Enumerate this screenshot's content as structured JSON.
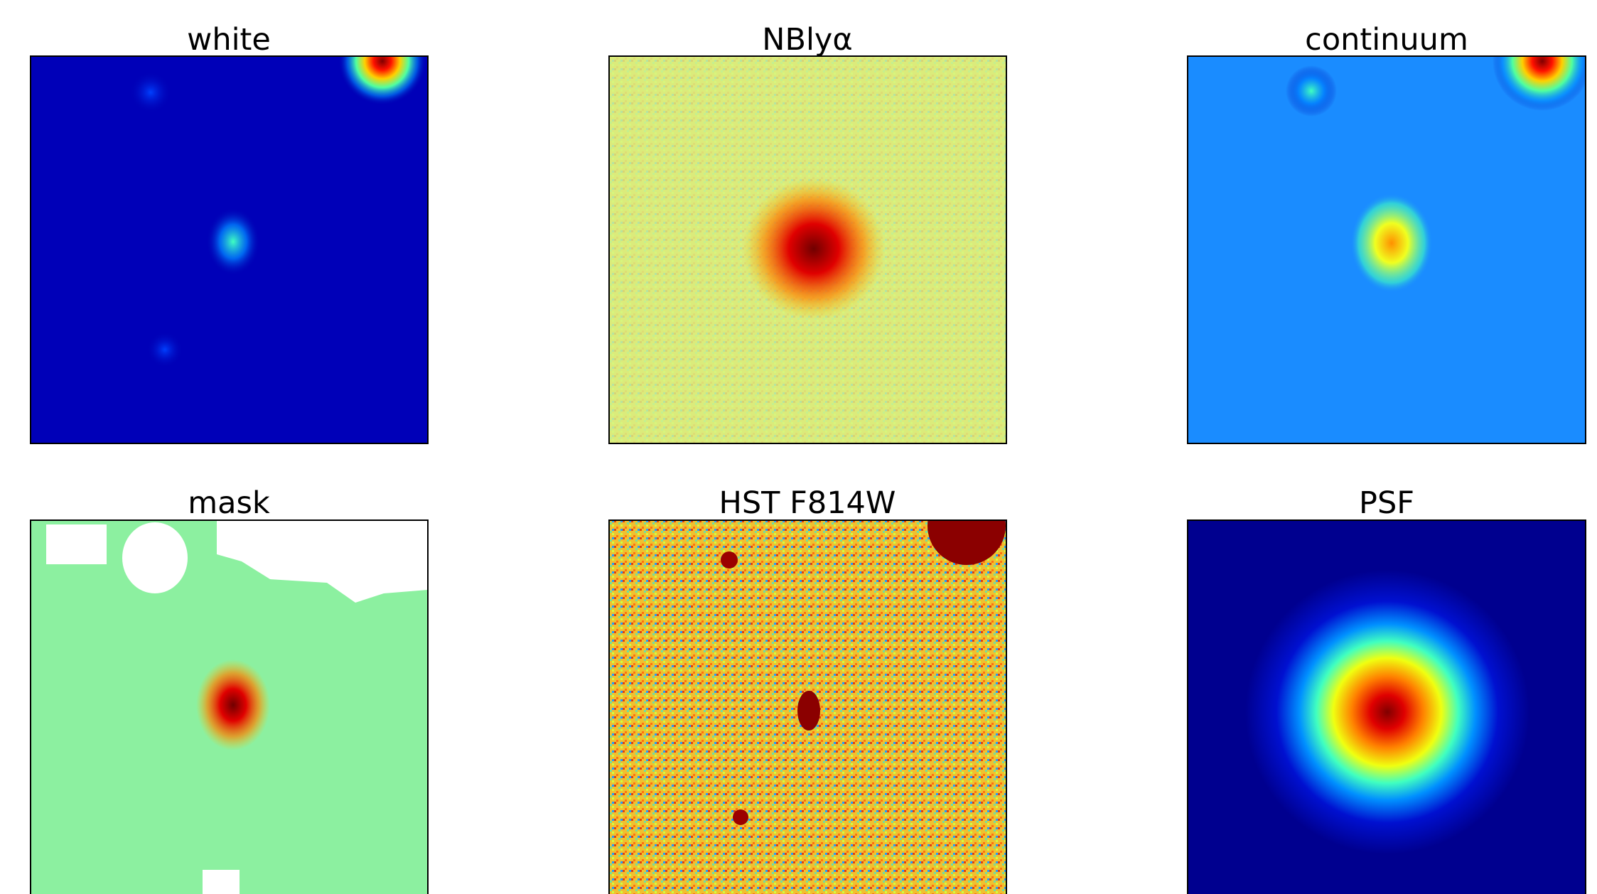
{
  "panels": [
    {
      "title": "white"
    },
    {
      "title": "NBlyα"
    },
    {
      "title": "continuum"
    },
    {
      "title": "mask"
    },
    {
      "title": "HST F814W"
    },
    {
      "title": "PSF"
    }
  ]
}
